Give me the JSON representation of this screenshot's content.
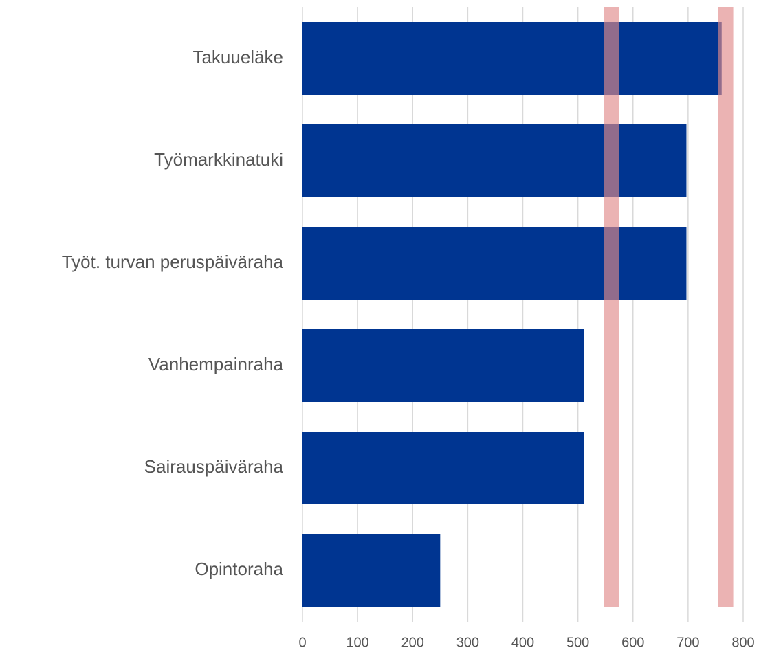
{
  "chart_data": {
    "type": "barh",
    "categories": [
      "Takuueläke",
      "Työmarkkinatuki",
      "Työt. turvan peruspäiväraha",
      "Vanhempainraha",
      "Sairauspäiväraha",
      "Opintoraha"
    ],
    "values": [
      761,
      697,
      697,
      511,
      511,
      250
    ],
    "color": "#003591",
    "bands": [
      {
        "from": 547,
        "to": 575
      },
      {
        "from": 754,
        "to": 782
      }
    ],
    "band_color": "#e08a8a",
    "xlim": [
      0,
      800
    ],
    "xticks": [
      0,
      100,
      200,
      300,
      400,
      500,
      600,
      700,
      800
    ],
    "grid": true
  }
}
